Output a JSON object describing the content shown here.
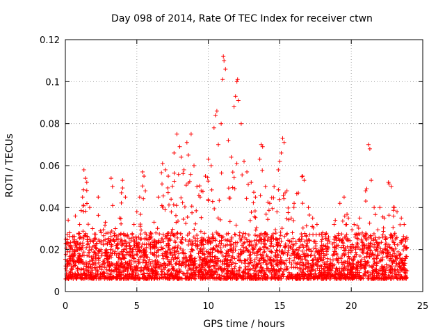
{
  "chart_data": {
    "type": "scatter",
    "title": "Day 098 of 2014, Rate Of TEC Index for receiver ctwn",
    "xlabel": "GPS time / hours",
    "ylabel": "ROTI / TECUs",
    "xlim": [
      0,
      25
    ],
    "ylim": [
      0,
      0.12
    ],
    "xticks": [
      0,
      5,
      10,
      15,
      20,
      25
    ],
    "xtick_labels": [
      "0",
      "5",
      "10",
      "15",
      "20",
      "25"
    ],
    "yticks": [
      0,
      0.02,
      0.04,
      0.06,
      0.08,
      0.1,
      0.12
    ],
    "ytick_labels": [
      "0",
      "0.02",
      "0.04",
      "0.06",
      "0.08",
      "0.1",
      "0.12"
    ],
    "grid": true,
    "marker": "+",
    "color": "#ff0000",
    "data_range_hours": [
      0,
      23.9
    ],
    "series": [
      {
        "name": "ROTI",
        "points": [
          [
            0.1,
            0.012
          ],
          [
            0.2,
            0.034
          ],
          [
            0.3,
            0.028
          ],
          [
            0.5,
            0.02
          ],
          [
            0.7,
            0.036
          ],
          [
            0.9,
            0.015
          ],
          [
            1.0,
            0.032
          ],
          [
            1.2,
            0.045
          ],
          [
            1.3,
            0.058
          ],
          [
            1.4,
            0.054
          ],
          [
            1.5,
            0.052
          ],
          [
            1.7,
            0.04
          ],
          [
            1.9,
            0.03
          ],
          [
            2.1,
            0.022
          ],
          [
            2.3,
            0.045
          ],
          [
            2.5,
            0.028
          ],
          [
            2.8,
            0.033
          ],
          [
            3.0,
            0.025
          ],
          [
            3.2,
            0.054
          ],
          [
            3.3,
            0.05
          ],
          [
            3.5,
            0.03
          ],
          [
            3.8,
            0.035
          ],
          [
            4.0,
            0.053
          ],
          [
            4.2,
            0.045
          ],
          [
            4.5,
            0.022
          ],
          [
            4.8,
            0.032
          ],
          [
            5.0,
            0.038
          ],
          [
            5.2,
            0.045
          ],
          [
            5.4,
            0.057
          ],
          [
            5.5,
            0.055
          ],
          [
            5.6,
            0.048
          ],
          [
            5.9,
            0.025
          ],
          [
            6.2,
            0.033
          ],
          [
            6.5,
            0.045
          ],
          [
            6.8,
            0.061
          ],
          [
            7.0,
            0.058
          ],
          [
            7.2,
            0.055
          ],
          [
            7.4,
            0.044
          ],
          [
            7.6,
            0.066
          ],
          [
            7.8,
            0.075
          ],
          [
            8.0,
            0.069
          ],
          [
            8.1,
            0.064
          ],
          [
            8.3,
            0.058
          ],
          [
            8.5,
            0.071
          ],
          [
            8.6,
            0.065
          ],
          [
            8.8,
            0.075
          ],
          [
            9.0,
            0.06
          ],
          [
            9.2,
            0.05
          ],
          [
            9.5,
            0.048
          ],
          [
            9.8,
            0.055
          ],
          [
            10.0,
            0.063
          ],
          [
            10.2,
            0.06
          ],
          [
            10.4,
            0.078
          ],
          [
            10.5,
            0.084
          ],
          [
            10.6,
            0.086
          ],
          [
            10.7,
            0.07
          ],
          [
            10.9,
            0.08
          ],
          [
            11.0,
            0.101
          ],
          [
            11.05,
            0.112
          ],
          [
            11.1,
            0.11
          ],
          [
            11.2,
            0.106
          ],
          [
            11.4,
            0.072
          ],
          [
            11.6,
            0.064
          ],
          [
            11.8,
            0.088
          ],
          [
            11.9,
            0.093
          ],
          [
            12.0,
            0.1
          ],
          [
            12.05,
            0.101
          ],
          [
            12.1,
            0.091
          ],
          [
            12.3,
            0.08
          ],
          [
            12.5,
            0.062
          ],
          [
            12.7,
            0.057
          ],
          [
            13.0,
            0.052
          ],
          [
            13.3,
            0.045
          ],
          [
            13.6,
            0.063
          ],
          [
            13.7,
            0.07
          ],
          [
            13.8,
            0.069
          ],
          [
            14.0,
            0.05
          ],
          [
            14.3,
            0.042
          ],
          [
            14.6,
            0.05
          ],
          [
            14.9,
            0.058
          ],
          [
            15.0,
            0.062
          ],
          [
            15.1,
            0.066
          ],
          [
            15.2,
            0.073
          ],
          [
            15.3,
            0.071
          ],
          [
            15.5,
            0.048
          ],
          [
            15.8,
            0.035
          ],
          [
            16.0,
            0.042
          ],
          [
            16.3,
            0.047
          ],
          [
            16.6,
            0.055
          ],
          [
            16.7,
            0.053
          ],
          [
            17.0,
            0.04
          ],
          [
            17.3,
            0.035
          ],
          [
            17.6,
            0.032
          ],
          [
            18.0,
            0.028
          ],
          [
            18.4,
            0.025
          ],
          [
            18.8,
            0.032
          ],
          [
            19.2,
            0.042
          ],
          [
            19.5,
            0.045
          ],
          [
            19.8,
            0.035
          ],
          [
            20.2,
            0.032
          ],
          [
            20.6,
            0.035
          ],
          [
            21.0,
            0.048
          ],
          [
            21.2,
            0.07
          ],
          [
            21.3,
            0.068
          ],
          [
            21.4,
            0.053
          ],
          [
            21.6,
            0.04
          ],
          [
            22.0,
            0.04
          ],
          [
            22.3,
            0.035
          ],
          [
            22.6,
            0.052
          ],
          [
            22.8,
            0.05
          ],
          [
            23.0,
            0.04
          ],
          [
            23.2,
            0.038
          ],
          [
            23.5,
            0.035
          ],
          [
            23.7,
            0.032
          ],
          [
            23.9,
            0.025
          ]
        ]
      }
    ]
  }
}
